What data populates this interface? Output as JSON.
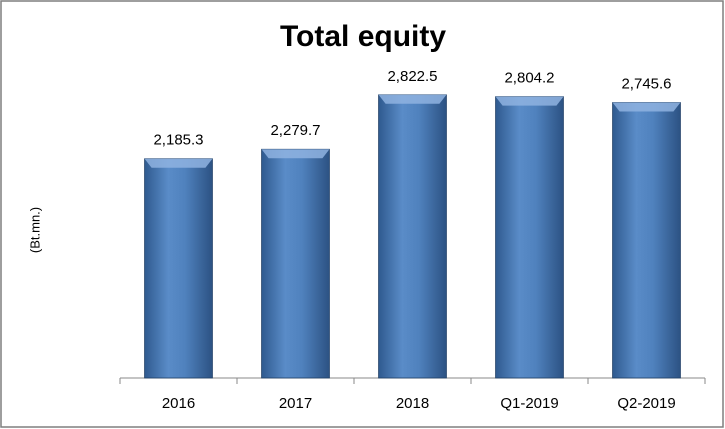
{
  "chart_data": {
    "type": "bar",
    "title": "Total equity",
    "y_label": "(Bt.mn.)",
    "categories": [
      "2016",
      "2017",
      "2018",
      "Q1-2019",
      "Q2-2019"
    ],
    "values": [
      2185.3,
      2279.7,
      2822.5,
      2804.2,
      2745.6
    ],
    "value_labels": [
      "2,185.3",
      "2,279.7",
      "2,822.5",
      "2,804.2",
      "2,745.6"
    ],
    "color": "#4f81bd",
    "ylim": [
      0,
      3000
    ]
  }
}
